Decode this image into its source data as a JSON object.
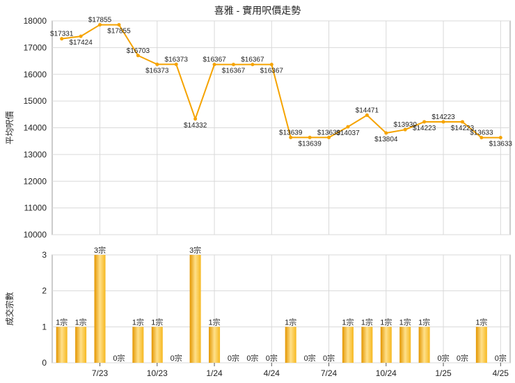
{
  "title": "喜雅 - 實用呎價走勢",
  "colors": {
    "line": "#f5a300",
    "bar_light": "#ffe08a",
    "bar_mid": "#f6b81f",
    "bar_dark": "#e39600"
  },
  "chart_data": [
    {
      "type": "line",
      "ylabel": "平均呎價",
      "ylim": [
        10000,
        18000
      ],
      "yticks": [
        10000,
        11000,
        12000,
        13000,
        14000,
        15000,
        16000,
        17000,
        18000
      ],
      "grid": true,
      "series": [
        {
          "values": [
            17331,
            17424,
            17855,
            17855,
            16703,
            16373,
            16373,
            14332,
            16367,
            16367,
            16367,
            16367,
            13639,
            13639,
            13639,
            14037,
            14471,
            13804,
            13930,
            14223,
            14223,
            14223,
            13633,
            13633
          ],
          "labels": [
            "$17331",
            "$17424",
            "$17855",
            "$17855",
            "$16703",
            "$16373",
            "$16373",
            "$14332",
            "$16367",
            "$16367",
            "$16367",
            "$16367",
            "$13639",
            "$13639",
            "$13639",
            "$14037",
            "$14471",
            "$13804",
            "$13930",
            "$14223",
            "$14223",
            "$14223",
            "$13633",
            "$13633"
          ]
        }
      ]
    },
    {
      "type": "bar",
      "ylabel": "成交宗數",
      "ylim": [
        0,
        3
      ],
      "yticks": [
        0,
        1,
        2,
        3
      ],
      "grid": true,
      "categories": [
        "",
        "",
        "7/23",
        "",
        "",
        "10/23",
        "",
        "",
        "1/24",
        "",
        "",
        "4/24",
        "",
        "",
        "7/24",
        "",
        "",
        "10/24",
        "",
        "",
        "1/25",
        "",
        "",
        "4/25"
      ],
      "values": [
        1,
        1,
        3,
        0,
        1,
        1,
        0,
        3,
        1,
        0,
        0,
        0,
        1,
        0,
        0,
        1,
        1,
        1,
        1,
        1,
        0,
        0,
        1,
        0
      ],
      "labels": [
        "1宗",
        "1宗",
        "3宗",
        "0宗",
        "1宗",
        "1宗",
        "0宗",
        "3宗",
        "1宗",
        "0宗",
        "0宗",
        "0宗",
        "1宗",
        "0宗",
        "0宗",
        "1宗",
        "1宗",
        "1宗",
        "1宗",
        "1宗",
        "0宗",
        "0宗",
        "1宗",
        "0宗"
      ]
    }
  ]
}
